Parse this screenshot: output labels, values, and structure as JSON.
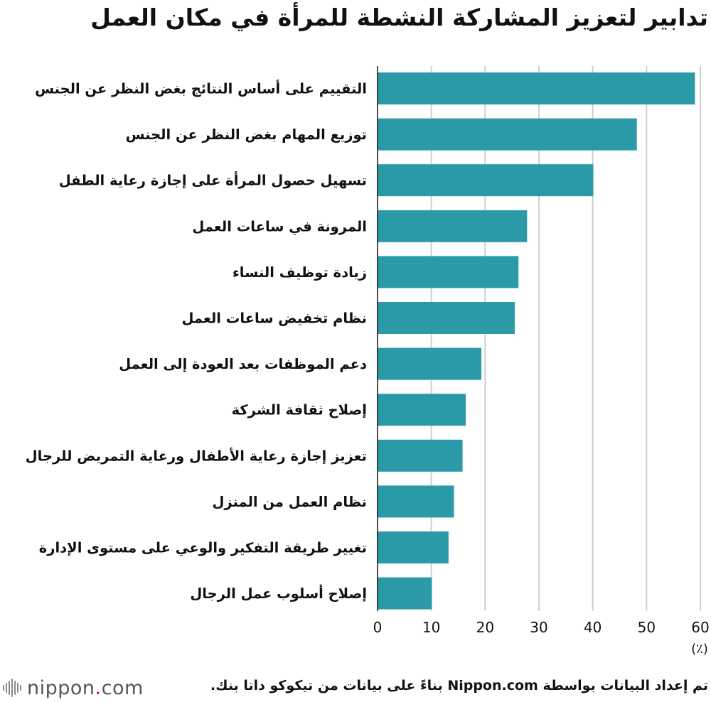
{
  "chart_data": {
    "type": "bar",
    "orientation": "horizontal",
    "title": "تدابير لتعزيز المشاركة النشطة للمرأة في مكان العمل",
    "unit": "(٪)",
    "xlim": [
      0,
      60
    ],
    "xticks": [
      0,
      10,
      20,
      30,
      40,
      50,
      60
    ],
    "grid": true,
    "color": "#2a9ba6",
    "categories": [
      "التقييم على أساس النتائج بغض النظر عن الجنس",
      "توزيع المهام بغض النظر عن الجنس",
      "تسهيل حصول المرأة على إجازة رعاية الطفل",
      "المرونة في ساعات العمل",
      "زيادة توظيف النساء",
      "نظام تخفيض ساعات العمل",
      "دعم الموظفات بعد العودة إلى العمل",
      "إصلاح ثقافة الشركة",
      "تعزيز إجازة رعاية الأطفال ورعاية التمريض للرجال",
      "نظام العمل من المنزل",
      "تغيير طريقة التفكير والوعي على مستوى الإدارة",
      "إصلاح أسلوب عمل الرجال"
    ],
    "values": [
      59.0,
      48.2,
      40.1,
      27.8,
      26.2,
      25.5,
      19.3,
      16.4,
      15.8,
      14.2,
      13.2,
      10.1
    ]
  },
  "footer": {
    "logo_name": "nippon",
    "logo_dot": ".",
    "logo_suffix": "com",
    "source": "تم إعداد البيانات بواسطة Nippon.com بناءً على بيانات من تيكوكو داتا بنك."
  },
  "icons": {
    "logo": "nippon-logo-mark-icon"
  }
}
